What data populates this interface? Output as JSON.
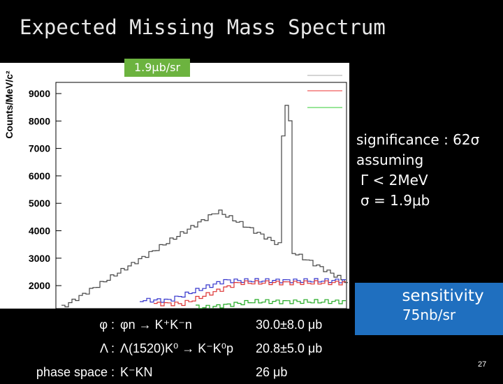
{
  "title": "Expected Missing Mass Spectrum",
  "plot": {
    "badge": "1.9μb/sr",
    "y_label": "Counts/MeV/c²",
    "yticks": [
      "9000",
      "8000",
      "7000",
      "6000",
      "5000",
      "4000",
      "3000",
      "2000"
    ]
  },
  "notes": [
    "significance : 62σ",
    "assuming",
    "Γ < 2MeV",
    "σ = 1.9μb"
  ],
  "sensitivity": {
    "label": "sensitivity",
    "value": "75nb/sr"
  },
  "table": {
    "rows": [
      [
        "φ :",
        "φn → K⁺K⁻n",
        "30.0±8.0 μb"
      ],
      [
        "Λ :",
        "Λ(1520)K⁰ → K⁻K⁰p",
        "20.8±5.0 μb"
      ],
      [
        "phase space :",
        "K⁻KN",
        "26 μb"
      ]
    ]
  },
  "page_number": "27"
}
